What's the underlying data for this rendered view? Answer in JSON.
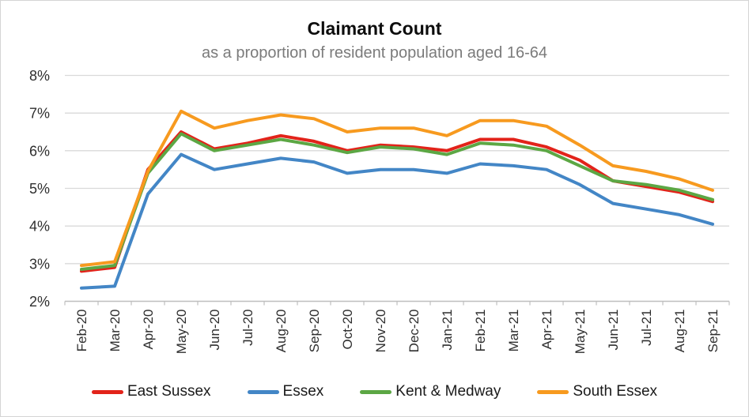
{
  "chart_data": {
    "type": "line",
    "title": "Claimant Count",
    "subtitle": "as a proportion of resident population aged 16-64",
    "categories": [
      "Feb-20",
      "Mar-20",
      "Apr-20",
      "May-20",
      "Jun-20",
      "Jul-20",
      "Aug-20",
      "Sep-20",
      "Oct-20",
      "Nov-20",
      "Dec-20",
      "Jan-21",
      "Feb-21",
      "Mar-21",
      "Apr-21",
      "May-21",
      "Jun-21",
      "Jul-21",
      "Aug-21",
      "Sep-21"
    ],
    "series": [
      {
        "name": "East Sussex",
        "color": "#e2231a",
        "values": [
          2.8,
          2.9,
          5.5,
          6.5,
          6.05,
          6.2,
          6.4,
          6.25,
          6.0,
          6.15,
          6.1,
          6.0,
          6.3,
          6.3,
          6.1,
          5.75,
          5.2,
          5.05,
          4.9,
          4.65
        ]
      },
      {
        "name": "Essex",
        "color": "#4386c6",
        "values": [
          2.35,
          2.4,
          4.85,
          5.9,
          5.5,
          5.65,
          5.8,
          5.7,
          5.4,
          5.5,
          5.5,
          5.4,
          5.65,
          5.6,
          5.5,
          5.1,
          4.6,
          4.45,
          4.3,
          4.05
        ]
      },
      {
        "name": "Kent & Medway",
        "color": "#5ca744",
        "values": [
          2.85,
          2.95,
          5.4,
          6.45,
          6.0,
          6.15,
          6.3,
          6.15,
          5.95,
          6.1,
          6.05,
          5.9,
          6.2,
          6.15,
          6.0,
          5.6,
          5.2,
          5.1,
          4.95,
          4.7
        ]
      },
      {
        "name": "South Essex",
        "color": "#f79a1f",
        "values": [
          2.95,
          3.05,
          5.45,
          7.05,
          6.6,
          6.8,
          6.95,
          6.85,
          6.5,
          6.6,
          6.6,
          6.4,
          6.8,
          6.8,
          6.65,
          6.15,
          5.6,
          5.45,
          5.25,
          4.95
        ]
      }
    ],
    "y_axis": {
      "min": 2,
      "max": 8,
      "step": 1,
      "tick_labels": [
        "2%",
        "3%",
        "4%",
        "5%",
        "6%",
        "7%",
        "8%"
      ]
    },
    "ylim": [
      2,
      8
    ],
    "grid": true,
    "legend_position": "bottom",
    "x_label_rotation": -90,
    "gridline_color": "#d9d9d9",
    "axis_line_color": "#bfbfbf"
  }
}
